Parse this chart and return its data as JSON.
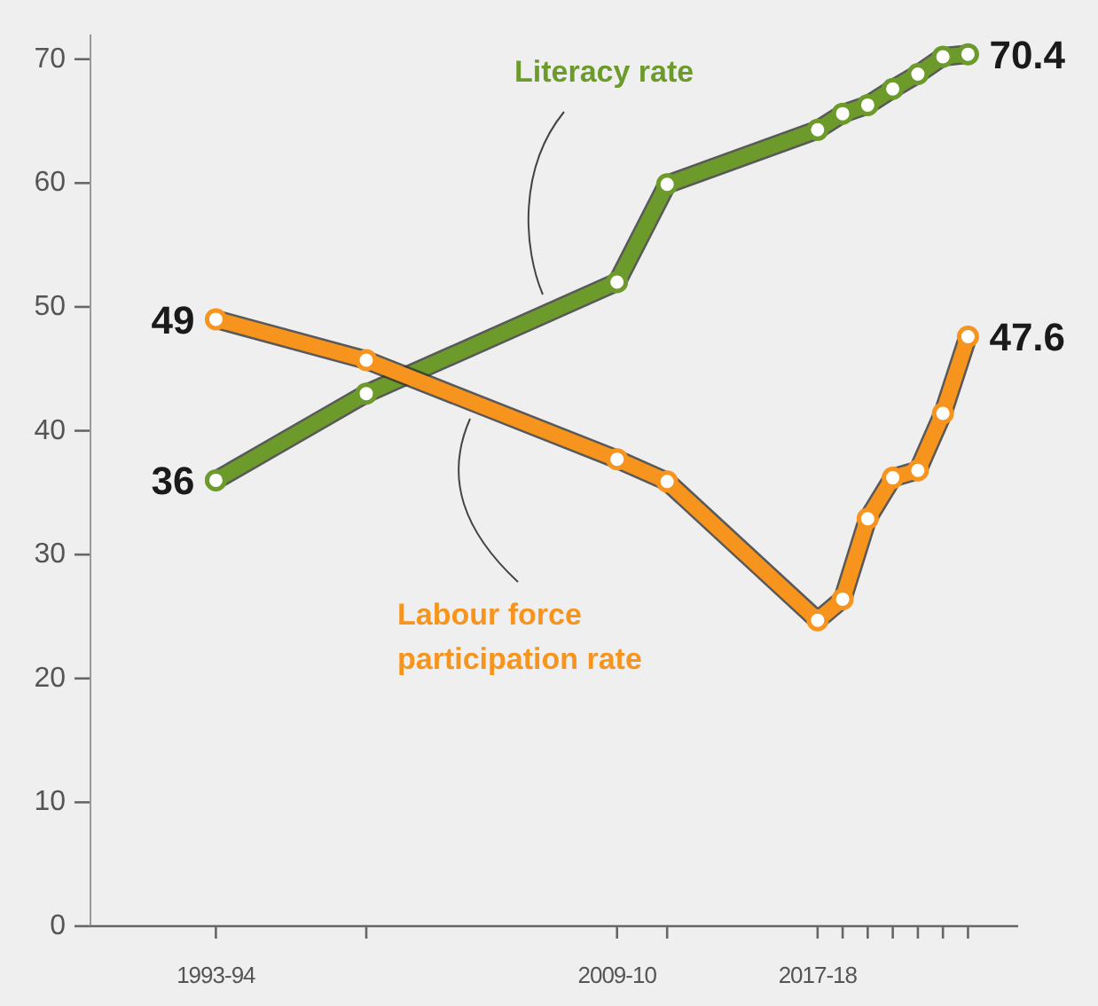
{
  "chart_data": {
    "type": "line",
    "x": [
      "1993",
      "1999",
      "2009",
      "2011",
      "2017",
      "2018",
      "2019",
      "2020",
      "2021",
      "2022",
      "2023"
    ],
    "series": [
      {
        "name": "Literacy rate",
        "color": "#6c9b2b",
        "values": [
          36,
          43.0,
          52.0,
          59.9,
          64.3,
          65.6,
          66.3,
          67.6,
          68.8,
          70.2,
          70.4
        ],
        "value_labels": [
          "36",
          null,
          null,
          null,
          null,
          null,
          null,
          null,
          null,
          null,
          "70.4"
        ]
      },
      {
        "name": "Labour force participation rate",
        "color": "#f7941d",
        "values": [
          49,
          45.7,
          37.7,
          35.9,
          24.7,
          26.4,
          32.9,
          36.2,
          36.8,
          41.4,
          47.6
        ],
        "value_labels": [
          "49",
          null,
          null,
          null,
          null,
          null,
          null,
          null,
          null,
          null,
          "47.6"
        ]
      }
    ],
    "xlim": [
      "1988",
      "2025"
    ],
    "xticks": [
      {
        "value": "1993",
        "label": "1993-94"
      },
      {
        "value": "1999",
        "label": null
      },
      {
        "value": "2009",
        "label": "2009-10"
      },
      {
        "value": "2011",
        "label": null
      },
      {
        "value": "2017",
        "label": "2017-18"
      },
      {
        "value": "2018",
        "label": null
      },
      {
        "value": "2019",
        "label": null
      },
      {
        "value": "2020",
        "label": null
      },
      {
        "value": "2021",
        "label": null
      },
      {
        "value": "2022",
        "label": null
      },
      {
        "value": "2023",
        "label": null
      }
    ],
    "ylim": [
      0,
      72
    ],
    "yticks": [
      0,
      10,
      20,
      30,
      40,
      50,
      60,
      70
    ],
    "grid": false,
    "legend": false,
    "marker": "circle",
    "line_style": "solid"
  }
}
